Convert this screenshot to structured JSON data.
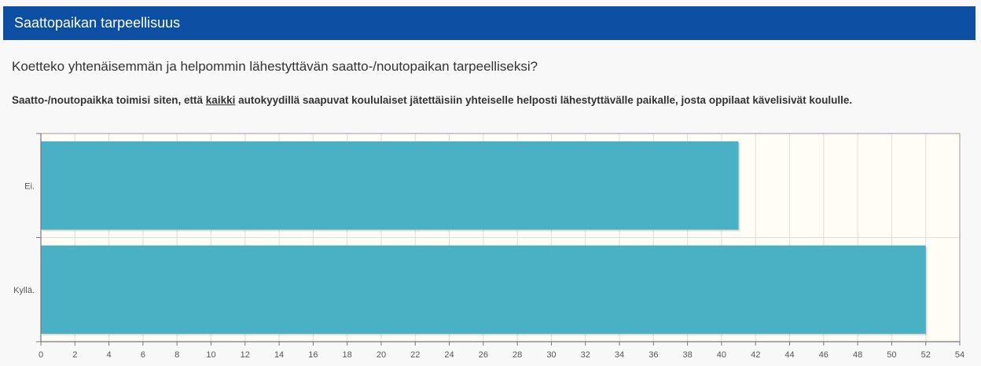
{
  "header": {
    "title": "Saattopaikan tarpeellisuus"
  },
  "question": {
    "text": "Koetteko yhtenäisemmän ja helpommin lähestyttävän saatto-/noutopaikan tarpeelliseksi?"
  },
  "description": {
    "before": "Saatto-/noutopaikka toimisi siten, että ",
    "underlined": "kaikki",
    "after": " autokyydillä saapuvat koululaiset jätettäisiin yhteiselle helposti lähestyttävälle paikalle, josta oppilaat kävelisivät koululle."
  },
  "colors": {
    "header_bg": "#0d4fa3",
    "bar": "#4ab1c4",
    "plot_bg": "#fffdf6",
    "grid": "#dddddd"
  },
  "chart_data": {
    "type": "bar",
    "orientation": "horizontal",
    "categories": [
      "Ei.",
      "Kyllä."
    ],
    "values": [
      41,
      52
    ],
    "xlim": [
      0,
      54
    ],
    "xticks": [
      0,
      2,
      4,
      6,
      8,
      10,
      12,
      14,
      16,
      18,
      20,
      22,
      24,
      26,
      28,
      30,
      32,
      34,
      36,
      38,
      40,
      42,
      44,
      46,
      48,
      50,
      52,
      54
    ],
    "grid": true,
    "legend": "none"
  }
}
